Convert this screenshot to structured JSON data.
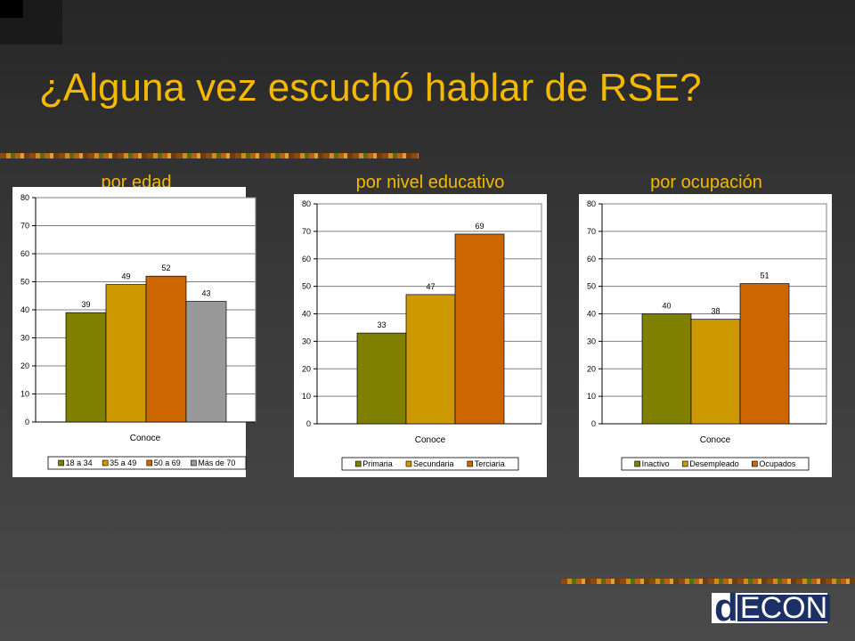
{
  "title": "¿Alguna vez escuchó hablar de RSE?",
  "logo": {
    "d": "d",
    "text": "ECON"
  },
  "chart_data": [
    {
      "type": "bar",
      "title": "por edad",
      "xlabel": "Conoce",
      "categories": [
        "Conoce"
      ],
      "ylim": [
        0,
        80
      ],
      "yticks": [
        0,
        10,
        20,
        30,
        40,
        50,
        60,
        70,
        80
      ],
      "series": [
        {
          "name": "18 a 34",
          "values": [
            39
          ],
          "color": "#808000"
        },
        {
          "name": "35 a 49",
          "values": [
            49
          ],
          "color": "#cc9900"
        },
        {
          "name": "50 a 69",
          "values": [
            52
          ],
          "color": "#cc6600"
        },
        {
          "name": "Más de 70",
          "values": [
            43
          ],
          "color": "#999999"
        }
      ],
      "legend": "bottom",
      "grid": true
    },
    {
      "type": "bar",
      "title": "por nivel educativo",
      "xlabel": "Conoce",
      "categories": [
        "Conoce"
      ],
      "ylim": [
        0,
        80
      ],
      "yticks": [
        0,
        10,
        20,
        30,
        40,
        50,
        60,
        70,
        80
      ],
      "series": [
        {
          "name": "Primaria",
          "values": [
            33
          ],
          "color": "#808000"
        },
        {
          "name": "Secundaria",
          "values": [
            47
          ],
          "color": "#cc9900"
        },
        {
          "name": "Terciaria",
          "values": [
            69
          ],
          "color": "#cc6600"
        }
      ],
      "legend": "bottom",
      "grid": true
    },
    {
      "type": "bar",
      "title": "por ocupación",
      "xlabel": "Conoce",
      "categories": [
        "Conoce"
      ],
      "ylim": [
        0,
        80
      ],
      "yticks": [
        0,
        10,
        20,
        30,
        40,
        50,
        60,
        70,
        80
      ],
      "series": [
        {
          "name": "Inactivo",
          "values": [
            40
          ],
          "color": "#808000"
        },
        {
          "name": "Desempleado",
          "values": [
            38
          ],
          "color": "#cc9900"
        },
        {
          "name": "Ocupados",
          "values": [
            51
          ],
          "color": "#cc6600"
        }
      ],
      "legend": "bottom",
      "grid": true
    }
  ]
}
